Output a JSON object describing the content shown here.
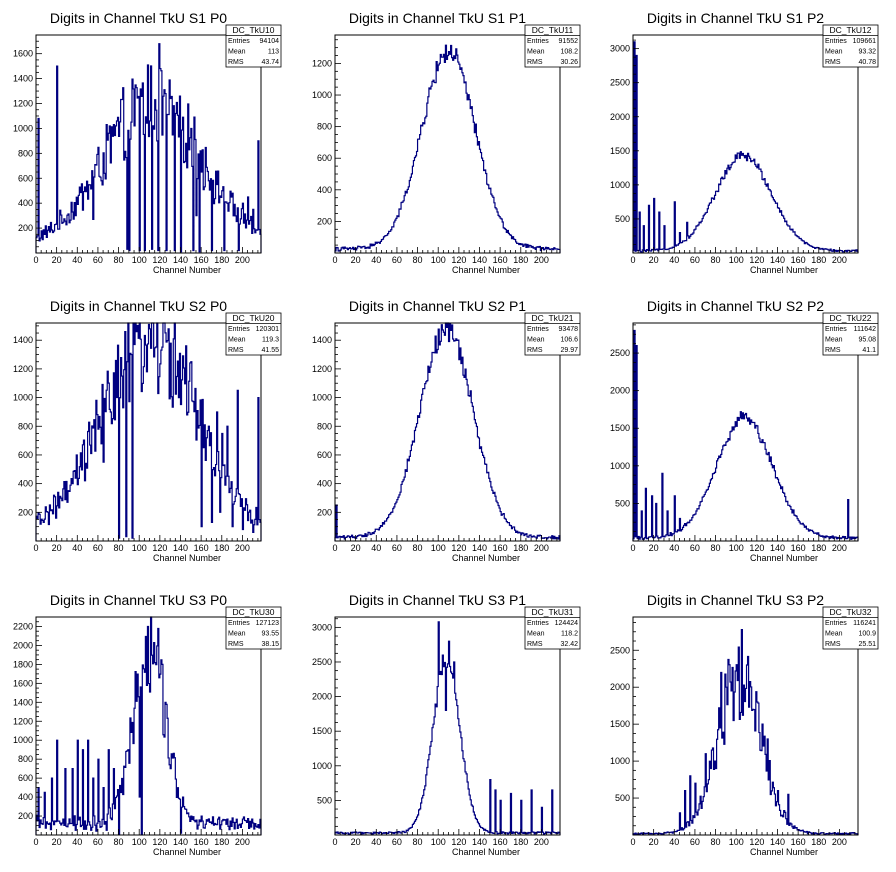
{
  "colors": {
    "histogram": "#000080",
    "frame": "#000000",
    "background": "#ffffff"
  },
  "chart_data": [
    {
      "type": "histogram",
      "title": "Digits in Channel TkU S1 P0",
      "xlabel": "Channel Number",
      "ylabel": "",
      "stats": {
        "name": "DC_TkU10",
        "entries": "94104",
        "mean": "113",
        "rms": "43.74"
      },
      "xlim": [
        0,
        218
      ],
      "ylim": [
        0,
        1750
      ],
      "xticks": [
        0,
        20,
        40,
        60,
        80,
        100,
        120,
        140,
        160,
        180,
        200
      ],
      "yticks": [
        200,
        400,
        600,
        800,
        1000,
        1200,
        1400,
        1600
      ],
      "shape": {
        "kind": "noisy",
        "mean": 113,
        "sigma": 47,
        "amp": 1150,
        "base": 60
      },
      "spikes": [
        [
          2,
          1080
        ],
        [
          20,
          1500
        ],
        [
          55,
          270
        ],
        [
          88,
          800
        ],
        [
          95,
          1020
        ],
        [
          100,
          1050
        ],
        [
          105,
          1080
        ],
        [
          110,
          1060
        ],
        [
          115,
          1230
        ],
        [
          119,
          1680
        ],
        [
          125,
          1280
        ],
        [
          130,
          1240
        ],
        [
          135,
          1120
        ],
        [
          140,
          1000
        ],
        [
          145,
          880
        ],
        [
          150,
          1000
        ],
        [
          155,
          300
        ],
        [
          160,
          650
        ],
        [
          170,
          700
        ],
        [
          175,
          550
        ],
        [
          180,
          500
        ],
        [
          190,
          480
        ],
        [
          200,
          400
        ],
        [
          205,
          450
        ],
        [
          210,
          350
        ],
        [
          215,
          900
        ]
      ],
      "dips": [
        [
          88,
          30
        ],
        [
          90,
          20
        ],
        [
          100,
          20
        ],
        [
          105,
          20
        ],
        [
          112,
          30
        ],
        [
          118,
          20
        ],
        [
          126,
          20
        ],
        [
          134,
          20
        ],
        [
          140,
          10
        ],
        [
          152,
          20
        ],
        [
          158,
          10
        ],
        [
          170,
          20
        ],
        [
          182,
          20
        ],
        [
          196,
          20
        ]
      ]
    },
    {
      "type": "histogram",
      "title": "Digits in Channel TkU S1 P1",
      "xlabel": "Channel Number",
      "ylabel": "",
      "stats": {
        "name": "DC_TkU11",
        "entries": "91552",
        "mean": "108.2",
        "rms": "30.26"
      },
      "xlim": [
        0,
        218
      ],
      "ylim": [
        0,
        1380
      ],
      "xticks": [
        0,
        20,
        40,
        60,
        80,
        100,
        120,
        140,
        160,
        180,
        200
      ],
      "yticks": [
        200,
        400,
        600,
        800,
        1000,
        1200
      ],
      "shape": {
        "kind": "smooth",
        "mean": 110,
        "sigma": 26,
        "amp": 1250,
        "base": 25
      },
      "spikes": [],
      "dips": []
    },
    {
      "type": "histogram",
      "title": "Digits in Channel TkU S1 P2",
      "xlabel": "Channel Number",
      "ylabel": "",
      "stats": {
        "name": "DC_TkU12",
        "entries": "109661",
        "mean": "93.32",
        "rms": "40.78"
      },
      "xlim": [
        0,
        218
      ],
      "ylim": [
        0,
        3200
      ],
      "xticks": [
        0,
        20,
        40,
        60,
        80,
        100,
        120,
        140,
        160,
        180,
        200
      ],
      "yticks": [
        500,
        1000,
        1500,
        2000,
        2500,
        3000
      ],
      "shape": {
        "kind": "smooth",
        "mean": 107,
        "sigma": 27,
        "amp": 1400,
        "base": 30
      },
      "spikes": [
        [
          1,
          3100
        ],
        [
          3,
          2900
        ],
        [
          6,
          600
        ],
        [
          10,
          400
        ],
        [
          15,
          700
        ],
        [
          20,
          800
        ],
        [
          25,
          600
        ],
        [
          30,
          400
        ],
        [
          40,
          750
        ],
        [
          45,
          300
        ],
        [
          52,
          450
        ]
      ],
      "dips": []
    },
    {
      "type": "histogram",
      "title": "Digits in Channel TkU S2 P0",
      "xlabel": "Channel Number",
      "ylabel": "",
      "stats": {
        "name": "DC_TkU20",
        "entries": "120301",
        "mean": "119.3",
        "rms": "41.55"
      },
      "xlim": [
        0,
        218
      ],
      "ylim": [
        0,
        1520
      ],
      "xticks": [
        0,
        20,
        40,
        60,
        80,
        100,
        120,
        140,
        160,
        180,
        200
      ],
      "yticks": [
        200,
        400,
        600,
        800,
        1000,
        1200,
        1400
      ],
      "shape": {
        "kind": "noisy",
        "mean": 110,
        "sigma": 45,
        "amp": 1350,
        "base": 70
      },
      "spikes": [
        [
          30,
          270
        ],
        [
          35,
          400
        ],
        [
          65,
          550
        ],
        [
          78,
          1000
        ],
        [
          83,
          1150
        ],
        [
          88,
          1250
        ],
        [
          92,
          1300
        ],
        [
          150,
          1250
        ],
        [
          160,
          1000
        ],
        [
          165,
          720
        ],
        [
          175,
          900
        ],
        [
          180,
          750
        ],
        [
          185,
          800
        ],
        [
          195,
          1050
        ],
        [
          200,
          650
        ],
        [
          215,
          1000
        ]
      ],
      "dips": [
        [
          80,
          20
        ],
        [
          87,
          30
        ],
        [
          93,
          20
        ],
        [
          160,
          100
        ],
        [
          170,
          130
        ],
        [
          178,
          200
        ],
        [
          190,
          100
        ],
        [
          200,
          80
        ],
        [
          210,
          60
        ]
      ]
    },
    {
      "type": "histogram",
      "title": "Digits in Channel TkU S2 P1",
      "xlabel": "Channel Number",
      "ylabel": "",
      "stats": {
        "name": "DC_TkU21",
        "entries": "93478",
        "mean": "106.6",
        "rms": "29.97"
      },
      "xlim": [
        0,
        218
      ],
      "ylim": [
        0,
        1520
      ],
      "xticks": [
        0,
        20,
        40,
        60,
        80,
        100,
        120,
        140,
        160,
        180,
        200
      ],
      "yticks": [
        200,
        400,
        600,
        800,
        1000,
        1200,
        1400
      ],
      "shape": {
        "kind": "smooth",
        "mean": 108,
        "sigma": 26,
        "amp": 1450,
        "base": 25
      },
      "spikes": [
        [
          1,
          250
        ]
      ],
      "dips": []
    },
    {
      "type": "histogram",
      "title": "Digits in Channel TkU S2 P2",
      "xlabel": "Channel Number",
      "ylabel": "",
      "stats": {
        "name": "DC_TkU22",
        "entries": "111642",
        "mean": "95.08",
        "rms": "41.1"
      },
      "xlim": [
        0,
        218
      ],
      "ylim": [
        0,
        2900
      ],
      "xticks": [
        0,
        20,
        40,
        60,
        80,
        100,
        120,
        140,
        160,
        180,
        200
      ],
      "yticks": [
        500,
        1000,
        1500,
        2000,
        2500
      ],
      "shape": {
        "kind": "smooth",
        "mean": 108,
        "sigma": 27,
        "amp": 1600,
        "base": 40
      },
      "spikes": [
        [
          1,
          2800
        ],
        [
          3,
          2600
        ],
        [
          8,
          400
        ],
        [
          12,
          700
        ],
        [
          18,
          600
        ],
        [
          22,
          500
        ],
        [
          28,
          900
        ],
        [
          33,
          400
        ],
        [
          40,
          600
        ],
        [
          45,
          300
        ],
        [
          208,
          550
        ]
      ],
      "dips": []
    },
    {
      "type": "histogram",
      "title": "Digits in Channel TkU S3 P0",
      "xlabel": "Channel Number",
      "ylabel": "",
      "stats": {
        "name": "DC_TkU30",
        "entries": "127123",
        "mean": "93.55",
        "rms": "38.15"
      },
      "xlim": [
        0,
        218
      ],
      "ylim": [
        0,
        2300
      ],
      "xticks": [
        0,
        20,
        40,
        60,
        80,
        100,
        120,
        140,
        160,
        180,
        200
      ],
      "yticks": [
        200,
        400,
        600,
        800,
        1000,
        1200,
        1400,
        1600,
        1800,
        2000,
        2200
      ],
      "shape": {
        "kind": "noisy",
        "mean": 110,
        "sigma": 15,
        "amp": 1900,
        "base": 120
      },
      "spikes": [
        [
          2,
          500
        ],
        [
          8,
          450
        ],
        [
          15,
          600
        ],
        [
          20,
          1000
        ],
        [
          28,
          700
        ],
        [
          35,
          700
        ],
        [
          40,
          1000
        ],
        [
          45,
          900
        ],
        [
          50,
          1000
        ],
        [
          55,
          600
        ],
        [
          60,
          800
        ],
        [
          65,
          500
        ],
        [
          70,
          900
        ],
        [
          75,
          700
        ],
        [
          100,
          400
        ],
        [
          108,
          2200
        ],
        [
          125,
          1400
        ],
        [
          130,
          700
        ],
        [
          140,
          300
        ],
        [
          150,
          200
        ],
        [
          160,
          200
        ]
      ],
      "dips": [
        [
          80,
          10
        ],
        [
          102,
          10
        ],
        [
          140,
          20
        ],
        [
          38,
          50
        ],
        [
          48,
          60
        ],
        [
          58,
          40
        ],
        [
          68,
          50
        ]
      ]
    },
    {
      "type": "histogram",
      "title": "Digits in Channel TkU S3 P1",
      "xlabel": "Channel Number",
      "ylabel": "",
      "stats": {
        "name": "DC_TkU31",
        "entries": "124424",
        "mean": "118.2",
        "rms": "32.42"
      },
      "xlim": [
        0,
        218
      ],
      "ylim": [
        0,
        3150
      ],
      "xticks": [
        0,
        20,
        40,
        60,
        80,
        100,
        120,
        140,
        160,
        180,
        200
      ],
      "yticks": [
        500,
        1000,
        1500,
        2000,
        2500,
        3000
      ],
      "shape": {
        "kind": "smooth",
        "mean": 108,
        "sigma": 13,
        "amp": 2500,
        "base": 30
      },
      "spikes": [
        [
          100,
          3080
        ],
        [
          104,
          2600
        ],
        [
          110,
          2800
        ],
        [
          115,
          2500
        ],
        [
          150,
          800
        ],
        [
          155,
          650
        ],
        [
          160,
          500
        ],
        [
          170,
          600
        ],
        [
          180,
          500
        ],
        [
          190,
          650
        ],
        [
          200,
          400
        ],
        [
          210,
          650
        ]
      ],
      "dips": [
        [
          107,
          1800
        ]
      ]
    },
    {
      "type": "histogram",
      "title": "Digits in Channel TkU S3 P2",
      "xlabel": "Channel Number",
      "ylabel": "",
      "stats": {
        "name": "DC_TkU32",
        "entries": "116241",
        "mean": "100.9",
        "rms": "25.51"
      },
      "xlim": [
        0,
        218
      ],
      "ylim": [
        0,
        2950
      ],
      "xticks": [
        0,
        20,
        40,
        60,
        80,
        100,
        120,
        140,
        160,
        180,
        200
      ],
      "yticks": [
        500,
        1000,
        1500,
        2000,
        2500
      ],
      "shape": {
        "kind": "noisy",
        "mean": 103,
        "sigma": 21,
        "amp": 2100,
        "base": 20
      },
      "spikes": [
        [
          45,
          300
        ],
        [
          50,
          600
        ],
        [
          55,
          800
        ],
        [
          60,
          700
        ],
        [
          70,
          1100
        ],
        [
          75,
          900
        ],
        [
          85,
          2200
        ],
        [
          90,
          2000
        ],
        [
          105,
          2780
        ],
        [
          110,
          2300
        ],
        [
          120,
          1800
        ],
        [
          125,
          1500
        ],
        [
          130,
          1300
        ],
        [
          140,
          600
        ],
        [
          150,
          550
        ]
      ],
      "dips": []
    }
  ]
}
